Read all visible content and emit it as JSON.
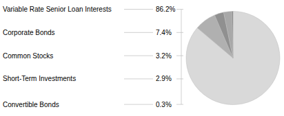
{
  "chart_data": {
    "type": "pie",
    "categories": [
      "Variable Rate Senior Loan Interests",
      "Corporate Bonds",
      "Common Stocks",
      "Short-Term Investments",
      "Convertible Bonds"
    ],
    "values": [
      86.2,
      7.4,
      3.2,
      2.9,
      0.3
    ],
    "value_labels": [
      "86.2%",
      "7.4%",
      "3.2%",
      "2.9%",
      "0.3%"
    ],
    "colors": [
      "#d9d9d9",
      "#b0b0b0",
      "#909090",
      "#a8a8a8",
      "#707070"
    ]
  }
}
